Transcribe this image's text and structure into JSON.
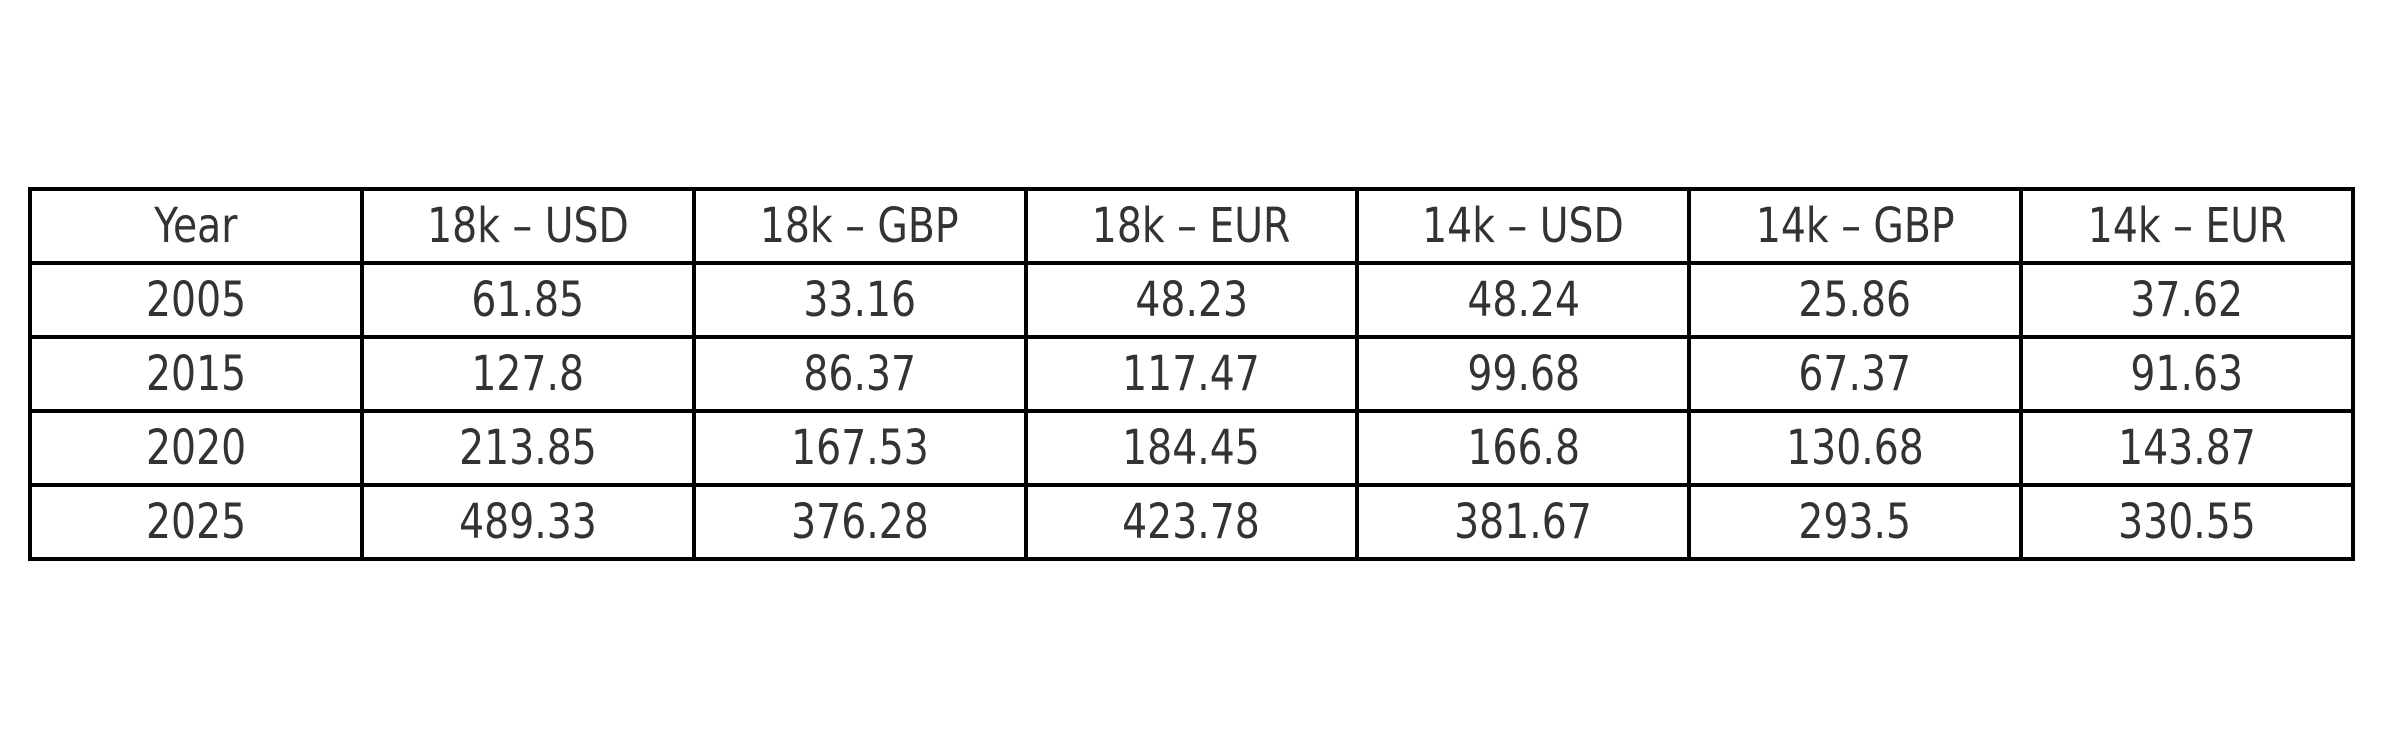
{
  "colors": {
    "background": "#ffffff",
    "border": "#000000",
    "text": "#333333"
  },
  "chart_data": {
    "type": "table",
    "title": "",
    "columns": [
      "Year",
      "18k – USD",
      "18k – GBP",
      "18k – EUR",
      "14k – USD",
      "14k – GBP",
      "14k – EUR"
    ],
    "rows": [
      [
        "2005",
        "61.85",
        "33.16",
        "48.23",
        "48.24",
        "25.86",
        "37.62"
      ],
      [
        "2015",
        "127.8",
        "86.37",
        "117.47",
        "99.68",
        "67.37",
        "91.63"
      ],
      [
        "2020",
        "213.85",
        "167.53",
        "184.45",
        "166.8",
        "130.68",
        "143.87"
      ],
      [
        "2025",
        "489.33",
        "376.28",
        "423.78",
        "381.67",
        "293.5",
        "330.55"
      ]
    ]
  }
}
